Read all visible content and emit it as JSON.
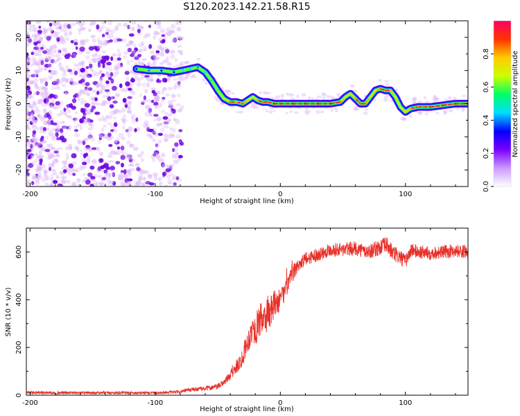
{
  "title": "S120.2023.142.21.58.R15",
  "colors": {
    "snr_line": "#e8302a",
    "axis": "#000000",
    "noise_light": "#dcb8f8",
    "noise_dark": "#6a00e0",
    "ridge_core": "#e8302a"
  },
  "chart_data": [
    {
      "type": "heatmap",
      "subtype": "spectrogram",
      "xlabel": "Height of straight line (km)",
      "ylabel": "Frequency (Hz)",
      "xlim": [
        -203,
        150
      ],
      "ylim": [
        -25,
        25
      ],
      "xticks": [
        -200,
        -100,
        0,
        100
      ],
      "xtick_labels": [
        "-200",
        "-100",
        "0",
        "100"
      ],
      "yticks": [
        -20,
        -10,
        0,
        10,
        20
      ],
      "ytick_labels": [
        "-20",
        "-10",
        "0",
        "10",
        "20"
      ],
      "grid": false,
      "colorbar": {
        "label": "Normalized spectral amplitude",
        "range": [
          0.0,
          1.0
        ],
        "ticks": [
          0.0,
          0.2,
          0.4,
          0.6,
          0.8
        ],
        "tick_labels": [
          "0.0",
          "0.2",
          "0.4",
          "0.6",
          "0.8"
        ],
        "colormap": [
          "#ffffff",
          "#cc99ff",
          "#7a00ff",
          "#0000ff",
          "#00ddff",
          "#00ff66",
          "#ccff00",
          "#ffcc00",
          "#ff3300",
          "#ff0066"
        ]
      },
      "ridge": {
        "name": "",
        "x": [
          -115,
          -105,
          -95,
          -85,
          -78,
          -72,
          -66,
          -60,
          -55,
          -50,
          -45,
          -40,
          -35,
          -30,
          -26,
          -22,
          -18,
          -14,
          -10,
          -5,
          0,
          10,
          20,
          30,
          40,
          48,
          52,
          56,
          60,
          64,
          68,
          72,
          76,
          80,
          84,
          88,
          92,
          96,
          100,
          104,
          110,
          120,
          130,
          140,
          150
        ],
        "y": [
          10.5,
          10,
          10,
          9.5,
          10,
          10.5,
          11,
          9.5,
          7,
          4,
          1.5,
          0.5,
          0.5,
          0,
          1,
          2,
          1,
          0.5,
          0.5,
          0,
          0,
          0,
          0,
          0,
          0,
          0.5,
          2,
          3,
          1.5,
          0,
          0,
          2,
          4,
          4.5,
          4,
          4,
          2,
          -1,
          -2.5,
          -1.5,
          -1,
          -1,
          -0.5,
          0,
          0
        ],
        "amplitude": [
          0.35,
          0.4,
          0.35,
          0.35,
          0.45,
          0.45,
          0.4,
          0.45,
          0.55,
          0.6,
          0.7,
          0.85,
          0.8,
          0.85,
          0.75,
          0.7,
          0.8,
          0.85,
          0.85,
          0.9,
          0.9,
          0.95,
          0.95,
          0.95,
          0.95,
          0.85,
          0.7,
          0.75,
          0.8,
          0.85,
          0.85,
          0.75,
          0.75,
          0.85,
          0.85,
          0.8,
          0.7,
          0.7,
          0.75,
          0.8,
          0.85,
          0.9,
          0.9,
          0.9,
          0.9
        ]
      },
      "noise_region": {
        "x_range": [
          -203,
          -78
        ],
        "y_range": [
          -25,
          25
        ],
        "amplitude_range": [
          0.05,
          0.35
        ]
      }
    },
    {
      "type": "line",
      "xlabel": "Height of straight line (km)",
      "ylabel": "SNR (10 * v/v)",
      "xlim": [
        -203,
        150
      ],
      "ylim": [
        0,
        700
      ],
      "xticks": [
        -200,
        -100,
        0,
        100
      ],
      "xtick_labels": [
        "-200",
        "-100",
        "0",
        "100"
      ],
      "yticks": [
        0,
        200,
        400,
        600
      ],
      "ytick_labels": [
        "0",
        "200",
        "400",
        "600"
      ],
      "grid": false,
      "series": [
        {
          "name": "",
          "color": "#e8302a",
          "x": [
            -203,
            -180,
            -160,
            -140,
            -120,
            -100,
            -90,
            -80,
            -75,
            -70,
            -60,
            -50,
            -45,
            -40,
            -35,
            -32,
            -30,
            -28,
            -25,
            -22,
            -20,
            -18,
            -15,
            -12,
            -10,
            -8,
            -5,
            -2,
            0,
            5,
            10,
            15,
            20,
            30,
            40,
            50,
            60,
            70,
            80,
            85,
            90,
            95,
            100,
            105,
            110,
            120,
            130,
            140,
            150
          ],
          "y": [
            12,
            10,
            10,
            10,
            10,
            10,
            12,
            14,
            20,
            24,
            28,
            36,
            55,
            80,
            120,
            145,
            160,
            200,
            240,
            280,
            260,
            300,
            320,
            310,
            360,
            340,
            380,
            390,
            400,
            450,
            510,
            550,
            570,
            590,
            610,
            610,
            615,
            600,
            620,
            630,
            595,
            580,
            560,
            610,
            600,
            595,
            600,
            605,
            600
          ],
          "noise_amplitude": [
            6,
            6,
            6,
            6,
            6,
            6,
            6,
            6,
            8,
            8,
            10,
            12,
            15,
            18,
            30,
            35,
            40,
            45,
            50,
            55,
            60,
            70,
            70,
            70,
            80,
            75,
            60,
            50,
            45,
            40,
            35,
            30,
            28,
            28,
            28,
            30,
            30,
            30,
            35,
            35,
            35,
            35,
            30,
            30,
            30,
            28,
            28,
            28,
            28
          ]
        }
      ]
    }
  ]
}
